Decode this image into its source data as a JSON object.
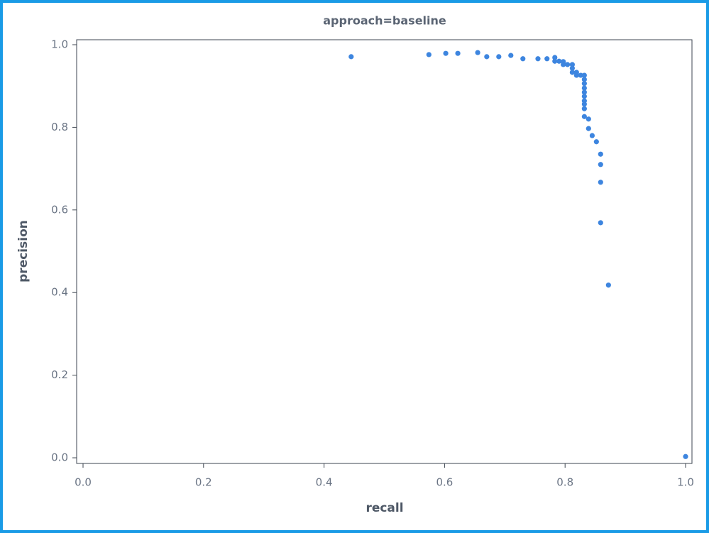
{
  "chart_data": {
    "type": "scatter",
    "title": "approach=baseline",
    "x_label": "recall",
    "y_label": "precision",
    "color": "#3d85df",
    "x": [
      0.445,
      0.574,
      0.602,
      0.622,
      0.655,
      0.67,
      0.69,
      0.71,
      0.73,
      0.755,
      0.77,
      0.783,
      0.783,
      0.79,
      0.797,
      0.797,
      0.804,
      0.812,
      0.812,
      0.812,
      0.819,
      0.819,
      0.826,
      0.832,
      0.832,
      0.832,
      0.832,
      0.832,
      0.832,
      0.832,
      0.832,
      0.832,
      0.832,
      0.839,
      0.839,
      0.845,
      0.852,
      0.859,
      0.859,
      0.859,
      0.859,
      0.872,
      1.0
    ],
    "values": [
      0.971,
      0.976,
      0.979,
      0.979,
      0.981,
      0.971,
      0.971,
      0.974,
      0.966,
      0.966,
      0.966,
      0.969,
      0.96,
      0.96,
      0.959,
      0.952,
      0.952,
      0.952,
      0.943,
      0.933,
      0.933,
      0.926,
      0.926,
      0.926,
      0.916,
      0.906,
      0.895,
      0.885,
      0.875,
      0.864,
      0.856,
      0.845,
      0.826,
      0.82,
      0.797,
      0.78,
      0.765,
      0.735,
      0.71,
      0.667,
      0.569,
      0.418,
      0.003
    ],
    "xlim": [
      -0.0106,
      1.0106
    ],
    "ylim": [
      -0.0137,
      1.012
    ],
    "xticks": [
      {
        "value": 0,
        "label": "0.0"
      },
      0.2,
      0.4,
      0.6,
      0.8,
      {
        "value": 1,
        "label": "1.0"
      }
    ],
    "yticks": [
      {
        "value": 0,
        "label": "0.0"
      },
      0.2,
      0.4,
      0.6,
      0.8,
      {
        "value": 1,
        "label": "1.0"
      }
    ],
    "grid": false
  }
}
